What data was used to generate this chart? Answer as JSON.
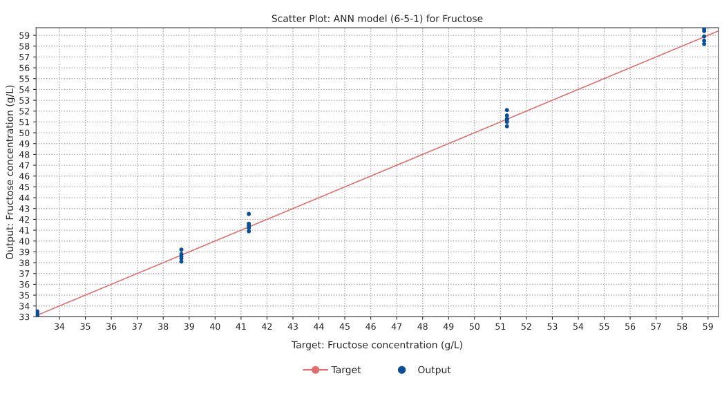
{
  "chart_data": {
    "type": "scatter",
    "title": "Scatter Plot: ANN model (6-5-1) for Fructose",
    "xlabel": "Target: Fructose concentration (g/L)",
    "ylabel": "Output: Fructose concentration (g/L)",
    "series": [
      {
        "name": "Target",
        "type": "line",
        "color": "#e07070",
        "marker": "none",
        "line_style": "solid",
        "x": [
          33.1,
          59.4
        ],
        "values": [
          33.1,
          59.4
        ]
      },
      {
        "name": "Output",
        "color": "#0a4f96",
        "marker": "circle",
        "x": [
          33.15,
          33.15,
          33.15,
          38.7,
          38.7,
          38.7,
          38.7,
          38.7,
          41.3,
          41.3,
          41.3,
          41.3,
          41.3,
          51.25,
          51.25,
          51.25,
          51.25,
          51.25,
          51.25,
          58.85,
          58.85,
          58.85,
          58.85,
          58.85
        ],
        "values": [
          33.1,
          33.3,
          33.5,
          38.1,
          38.4,
          38.6,
          38.8,
          39.2,
          40.9,
          41.2,
          41.4,
          41.6,
          42.5,
          50.6,
          51.0,
          51.2,
          51.3,
          51.6,
          52.1,
          58.2,
          58.5,
          58.9,
          59.4,
          59.6
        ]
      }
    ],
    "xlim": [
      33.1,
      59.4
    ],
    "ylim": [
      33,
      59.7
    ],
    "xticks": [
      34,
      35,
      36,
      37,
      38,
      39,
      40,
      41,
      42,
      43,
      44,
      45,
      46,
      47,
      48,
      49,
      50,
      51,
      52,
      53,
      54,
      55,
      56,
      57,
      58,
      59
    ],
    "yticks": [
      33,
      34,
      35,
      36,
      37,
      38,
      39,
      40,
      41,
      42,
      43,
      44,
      45,
      46,
      47,
      48,
      49,
      50,
      51,
      52,
      53,
      54,
      55,
      56,
      57,
      58,
      59
    ],
    "grid": true,
    "legend": "bottom"
  }
}
